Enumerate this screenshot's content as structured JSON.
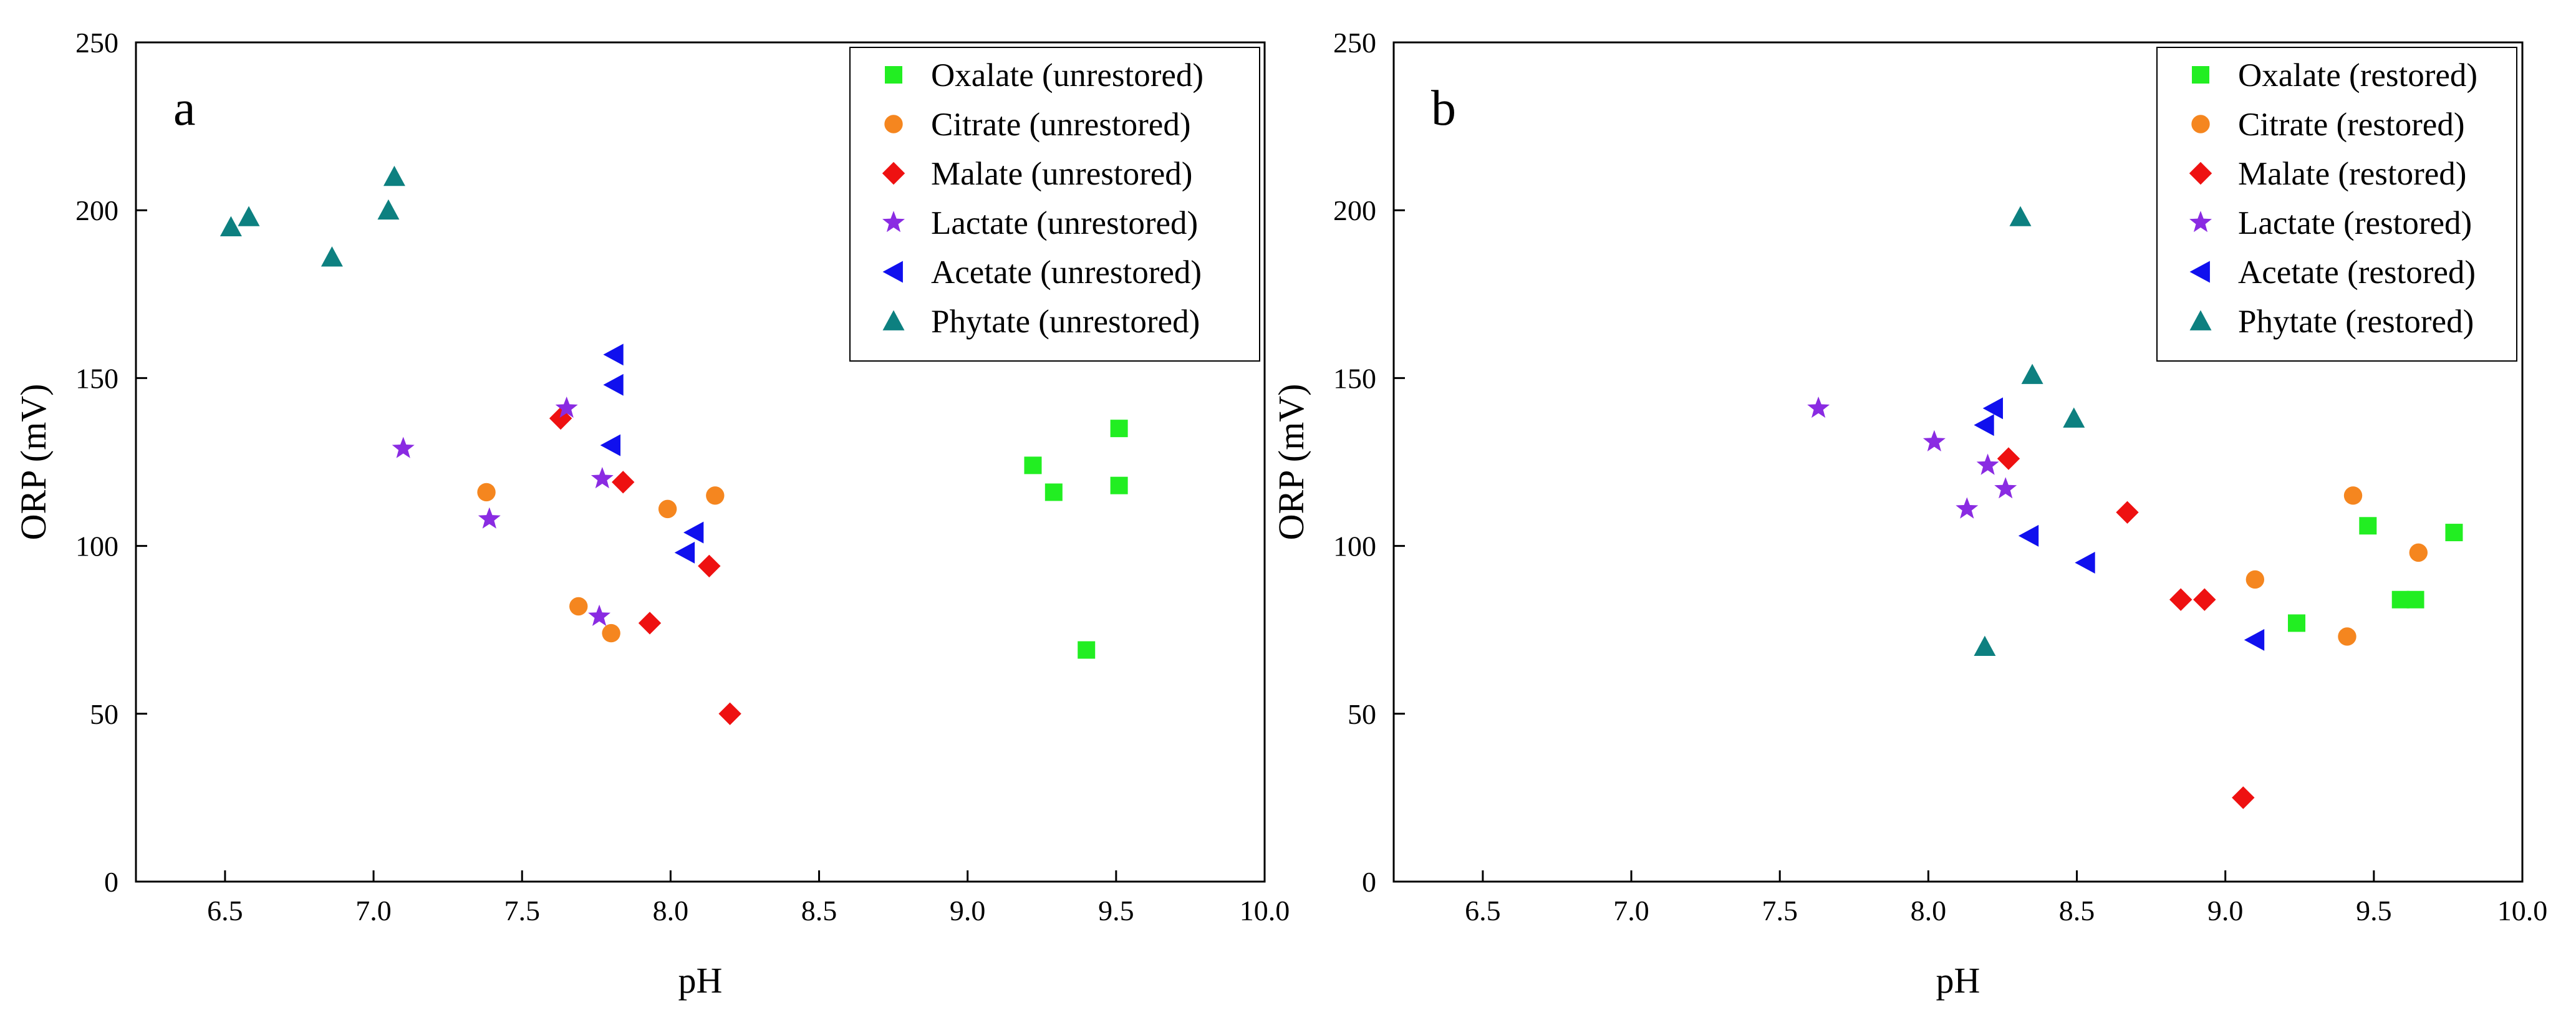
{
  "colors": {
    "Oxalate": "#22ee22",
    "Citrate": "#f5861f",
    "Malate": "#ee1111",
    "Lactate": "#8a2be2",
    "Acetate": "#1010ee",
    "Phytate": "#0d8080"
  },
  "chart_data": [
    {
      "type": "scatter",
      "panel_label": "a",
      "xlabel": "pH",
      "ylabel": "ORP (mV)",
      "xlim": [
        6.2,
        10.0
      ],
      "ylim": [
        0,
        250
      ],
      "xticks": [
        "6.5",
        "7.0",
        "7.5",
        "8.0",
        "8.5",
        "9.0",
        "9.5",
        "10.0"
      ],
      "yticks": [
        "0",
        "50",
        "100",
        "150",
        "200",
        "250"
      ],
      "legend_position": "top-right",
      "series": [
        {
          "key": "Oxalate",
          "name": "Oxalate (unrestored)",
          "marker": "square",
          "x": [
            9.22,
            9.29,
            9.51,
            9.51,
            9.4
          ],
          "y": [
            124,
            116,
            135,
            118,
            69
          ]
        },
        {
          "key": "Citrate",
          "name": "Citrate (unrestored)",
          "marker": "circle",
          "x": [
            7.38,
            7.69,
            7.8,
            7.99,
            8.15
          ],
          "y": [
            116,
            82,
            74,
            111,
            115
          ]
        },
        {
          "key": "Malate",
          "name": "Malate (unrestored)",
          "marker": "diamond",
          "x": [
            7.63,
            7.84,
            7.93,
            8.13,
            8.2
          ],
          "y": [
            138,
            119,
            77,
            94,
            50
          ]
        },
        {
          "key": "Lactate",
          "name": "Lactate (unrestored)",
          "marker": "star",
          "x": [
            7.1,
            7.39,
            7.65,
            7.76,
            7.77
          ],
          "y": [
            129,
            108,
            141,
            79,
            120
          ]
        },
        {
          "key": "Acetate",
          "name": "Acetate (unrestored)",
          "marker": "triangle-left",
          "x": [
            7.81,
            7.81,
            7.8,
            8.08,
            8.05
          ],
          "y": [
            157,
            148,
            130,
            104,
            98
          ]
        },
        {
          "key": "Phytate",
          "name": "Phytate (unrestored)",
          "marker": "triangle-up",
          "x": [
            6.52,
            6.58,
            6.86,
            7.05,
            7.07
          ],
          "y": [
            195,
            198,
            186,
            200,
            210
          ]
        }
      ]
    },
    {
      "type": "scatter",
      "panel_label": "b",
      "xlabel": "pH",
      "ylabel": "ORP (mV)",
      "xlim": [
        6.2,
        10.0
      ],
      "ylim": [
        0,
        250
      ],
      "xticks": [
        "6.5",
        "7.0",
        "7.5",
        "8.0",
        "8.5",
        "9.0",
        "9.5",
        "10.0"
      ],
      "yticks": [
        "0",
        "50",
        "100",
        "150",
        "200",
        "250"
      ],
      "legend_position": "top-right",
      "series": [
        {
          "key": "Oxalate",
          "name": "Oxalate (restored)",
          "marker": "square",
          "x": [
            9.24,
            9.48,
            9.59,
            9.64,
            9.77
          ],
          "y": [
            77,
            106,
            84,
            84,
            104
          ]
        },
        {
          "key": "Citrate",
          "name": "Citrate (restored)",
          "marker": "circle",
          "x": [
            9.1,
            9.41,
            9.43,
            9.65
          ],
          "y": [
            90,
            73,
            115,
            98
          ]
        },
        {
          "key": "Malate",
          "name": "Malate (restored)",
          "marker": "diamond",
          "x": [
            8.27,
            8.67,
            8.85,
            8.93,
            9.06
          ],
          "y": [
            126,
            110,
            84,
            84,
            25
          ]
        },
        {
          "key": "Lactate",
          "name": "Lactate (restored)",
          "marker": "star",
          "x": [
            7.63,
            8.02,
            8.13,
            8.2,
            8.26
          ],
          "y": [
            141,
            131,
            111,
            124,
            117
          ]
        },
        {
          "key": "Acetate",
          "name": "Acetate (restored)",
          "marker": "triangle-left",
          "x": [
            8.22,
            8.19,
            8.34,
            8.53,
            9.1
          ],
          "y": [
            141,
            136,
            103,
            95,
            72
          ]
        },
        {
          "key": "Phytate",
          "name": "Phytate (restored)",
          "marker": "triangle-up",
          "x": [
            8.31,
            8.35,
            8.49,
            8.19
          ],
          "y": [
            198,
            151,
            138,
            70
          ]
        }
      ]
    }
  ]
}
